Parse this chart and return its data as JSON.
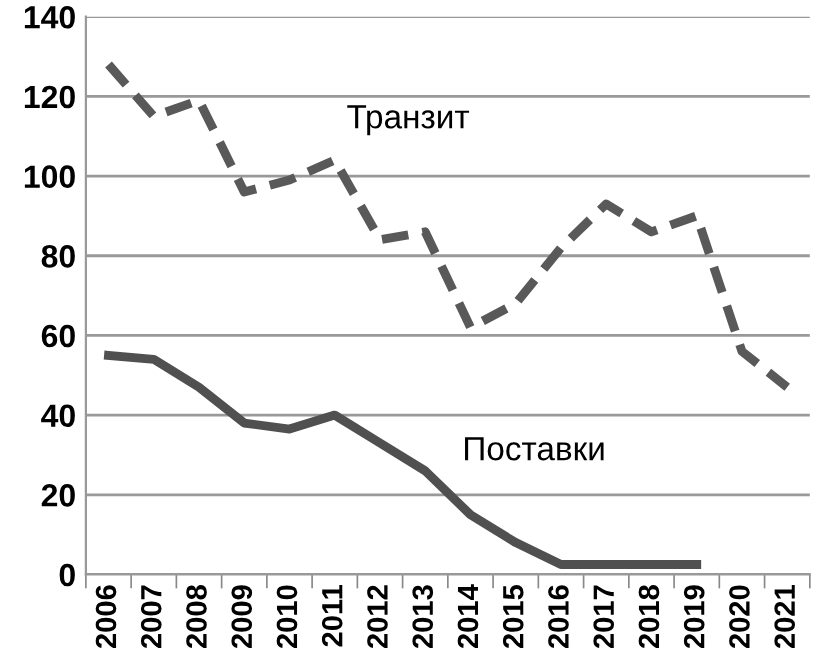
{
  "chart_data": {
    "type": "line",
    "categories": [
      "2006",
      "2007",
      "2008",
      "2009",
      "2010",
      "2011",
      "2012",
      "2013",
      "2014",
      "2015",
      "2016",
      "2017",
      "2018",
      "2019",
      "2020",
      "2021"
    ],
    "series": [
      {
        "name": "Транзит",
        "color": "#595959",
        "line_style": "dashed",
        "values": [
          128,
          115,
          119,
          96,
          99,
          104,
          84,
          86,
          62,
          68,
          82,
          93,
          86,
          90,
          56,
          47
        ]
      },
      {
        "name": "Поставки",
        "color": "#505050",
        "line_style": "solid",
        "values": [
          55,
          54,
          47,
          38,
          36.5,
          40,
          33,
          26,
          15,
          8,
          2.5,
          2.5,
          2.5,
          2.5,
          null,
          null
        ]
      }
    ],
    "ylim": [
      0,
      140
    ],
    "yticks": [
      0,
      20,
      40,
      60,
      80,
      100,
      120,
      140
    ],
    "grid": "y",
    "legend": false,
    "marker": "none"
  }
}
